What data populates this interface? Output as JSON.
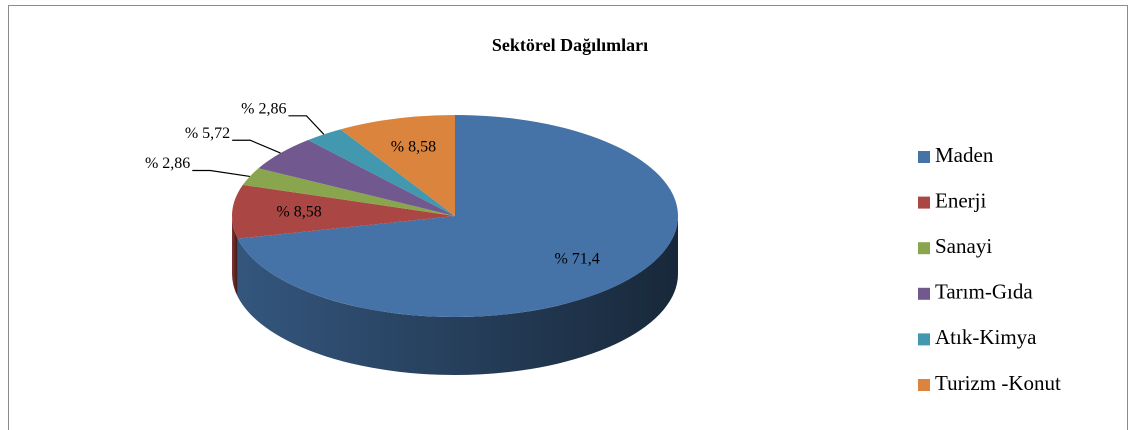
{
  "chart_data": {
    "type": "pie3d",
    "title": "Sektörel Dağılımları",
    "categories": [
      "Maden",
      "Enerji",
      "Sanayi",
      "Tarım-Gıda",
      "Atık-Kimya",
      "Turizm -Konut"
    ],
    "values": [
      71.4,
      8.58,
      2.86,
      5.72,
      2.86,
      8.58
    ],
    "value_labels": [
      "% 71,4",
      "% 8,58",
      "% 2,86",
      "% 5,72",
      "% 2,86",
      "% 8,58"
    ],
    "colors": [
      "#4572a7",
      "#aa4643",
      "#89a54e",
      "#71588f",
      "#4198af",
      "#db843d"
    ],
    "legend": "right"
  }
}
